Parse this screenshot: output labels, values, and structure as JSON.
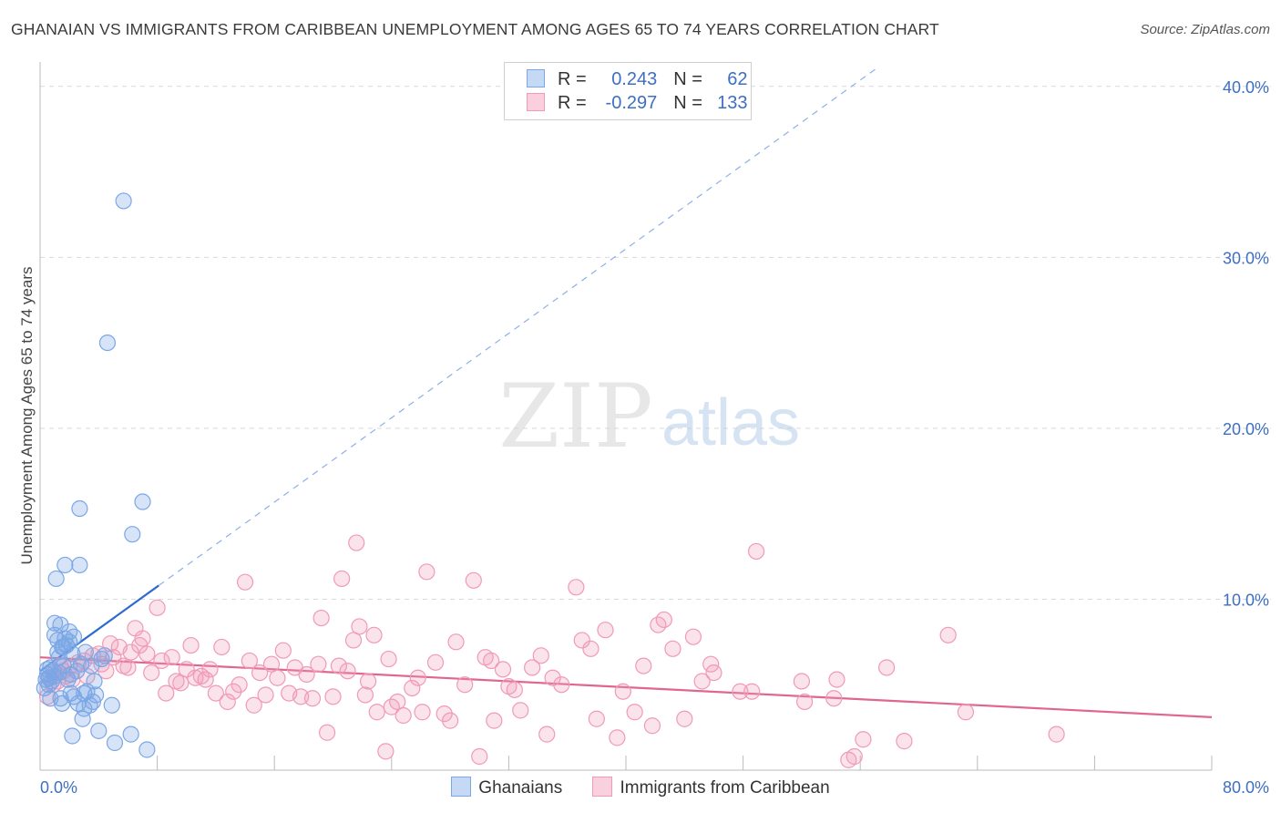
{
  "title": "GHANAIAN VS IMMIGRANTS FROM CARIBBEAN UNEMPLOYMENT AMONG AGES 65 TO 74 YEARS CORRELATION CHART",
  "source": "Source: ZipAtlas.com",
  "watermark": {
    "zip": "ZIP",
    "atlas": "atlas"
  },
  "legend": {
    "r_label": "R =",
    "n_label": "N =",
    "rows": [
      {
        "r": "0.243",
        "n": "62",
        "color": "#7aa7e6"
      },
      {
        "r": "-0.297",
        "n": "133",
        "color": "#f09ab6"
      }
    ]
  },
  "bottom_legend": [
    {
      "label": "Ghanaians",
      "color": "#7aa7e6"
    },
    {
      "label": "Immigrants from Caribbean",
      "color": "#f09ab6"
    }
  ],
  "chart_data": {
    "type": "scatter",
    "title": "GHANAIAN VS IMMIGRANTS FROM CARIBBEAN UNEMPLOYMENT AMONG AGES 65 TO 74 YEARS CORRELATION CHART",
    "xlabel": "",
    "ylabel": "Unemployment Among Ages 65 to 74 years",
    "xlim": [
      0,
      80
    ],
    "ylim": [
      0,
      41
    ],
    "x_tick_labels": [
      "0.0%",
      "80.0%"
    ],
    "y_ticks": [
      10,
      20,
      30,
      40
    ],
    "y_tick_labels": [
      "10.0%",
      "20.0%",
      "30.0%",
      "40.0%"
    ],
    "grid": true,
    "series": [
      {
        "name": "Ghanaians",
        "color": "#7aa7e6",
        "line_color": "#2c6bd1",
        "trend": {
          "x0": 0,
          "y0": 5.8,
          "x1": 8.1,
          "y1": 10.8,
          "dashed_to_x": 80
        },
        "points": [
          [
            0.3,
            4.8
          ],
          [
            0.4,
            5.3
          ],
          [
            0.5,
            5.6
          ],
          [
            0.5,
            5.9
          ],
          [
            0.6,
            5.4
          ],
          [
            0.7,
            4.2
          ],
          [
            0.7,
            6.0
          ],
          [
            0.8,
            5.2
          ],
          [
            0.9,
            5.8
          ],
          [
            1.0,
            7.9
          ],
          [
            1.0,
            8.6
          ],
          [
            1.1,
            11.2
          ],
          [
            1.2,
            7.6
          ],
          [
            1.2,
            6.9
          ],
          [
            1.3,
            5.7
          ],
          [
            1.4,
            8.5
          ],
          [
            1.4,
            4.2
          ],
          [
            1.5,
            3.9
          ],
          [
            1.6,
            7.2
          ],
          [
            1.6,
            6.1
          ],
          [
            1.7,
            12.0
          ],
          [
            1.7,
            7.7
          ],
          [
            1.8,
            7.3
          ],
          [
            1.9,
            5.3
          ],
          [
            2.0,
            7.5
          ],
          [
            2.0,
            8.1
          ],
          [
            2.1,
            5.6
          ],
          [
            2.1,
            4.5
          ],
          [
            2.2,
            6.8
          ],
          [
            2.2,
            2.0
          ],
          [
            2.3,
            7.8
          ],
          [
            2.3,
            4.3
          ],
          [
            2.5,
            5.8
          ],
          [
            2.6,
            3.9
          ],
          [
            2.7,
            12.0
          ],
          [
            2.7,
            15.3
          ],
          [
            2.8,
            6.2
          ],
          [
            2.9,
            3.0
          ],
          [
            3.0,
            4.5
          ],
          [
            3.0,
            3.6
          ],
          [
            3.1,
            6.9
          ],
          [
            3.2,
            4.6
          ],
          [
            3.4,
            3.8
          ],
          [
            3.5,
            6.1
          ],
          [
            3.6,
            4.0
          ],
          [
            3.7,
            5.2
          ],
          [
            3.8,
            4.4
          ],
          [
            4.0,
            2.3
          ],
          [
            4.2,
            6.5
          ],
          [
            4.4,
            6.7
          ],
          [
            4.6,
            25.0
          ],
          [
            4.9,
            3.8
          ],
          [
            5.1,
            1.6
          ],
          [
            5.7,
            33.3
          ],
          [
            6.2,
            2.1
          ],
          [
            6.3,
            13.8
          ],
          [
            7.0,
            15.7
          ],
          [
            7.3,
            1.2
          ],
          [
            0.6,
            5.0
          ],
          [
            1.0,
            5.5
          ],
          [
            1.3,
            6.6
          ],
          [
            1.5,
            7.2
          ]
        ]
      },
      {
        "name": "Immigrants from Caribbean",
        "color": "#f09ab6",
        "line_color": "#e06690",
        "trend": {
          "x0": 0,
          "y0": 6.6,
          "x1": 80,
          "y1": 3.1
        },
        "points": [
          [
            0.5,
            4.3
          ],
          [
            0.7,
            5.4
          ],
          [
            0.9,
            5.0
          ],
          [
            1.0,
            5.7
          ],
          [
            1.2,
            5.2
          ],
          [
            1.4,
            6.1
          ],
          [
            1.6,
            5.8
          ],
          [
            1.8,
            5.5
          ],
          [
            2.0,
            6.0
          ],
          [
            2.2,
            5.3
          ],
          [
            2.6,
            6.3
          ],
          [
            3.0,
            6.4
          ],
          [
            3.2,
            5.5
          ],
          [
            3.6,
            6.7
          ],
          [
            4.0,
            6.8
          ],
          [
            4.2,
            6.2
          ],
          [
            4.5,
            5.8
          ],
          [
            4.8,
            7.4
          ],
          [
            5.0,
            6.6
          ],
          [
            5.4,
            7.2
          ],
          [
            5.7,
            6.1
          ],
          [
            6.0,
            6.0
          ],
          [
            6.2,
            6.9
          ],
          [
            6.5,
            8.3
          ],
          [
            6.8,
            7.3
          ],
          [
            7.0,
            7.7
          ],
          [
            7.3,
            6.8
          ],
          [
            7.6,
            5.7
          ],
          [
            8.0,
            9.5
          ],
          [
            8.3,
            6.4
          ],
          [
            8.6,
            4.5
          ],
          [
            9.0,
            6.6
          ],
          [
            9.3,
            5.2
          ],
          [
            9.6,
            5.1
          ],
          [
            10.0,
            5.9
          ],
          [
            10.3,
            7.3
          ],
          [
            10.6,
            5.4
          ],
          [
            11.0,
            5.5
          ],
          [
            11.3,
            5.3
          ],
          [
            11.6,
            5.9
          ],
          [
            12.0,
            4.5
          ],
          [
            12.4,
            7.2
          ],
          [
            12.8,
            4.0
          ],
          [
            13.2,
            4.6
          ],
          [
            13.6,
            5.0
          ],
          [
            14.0,
            11.0
          ],
          [
            14.3,
            6.4
          ],
          [
            14.6,
            3.8
          ],
          [
            15.0,
            5.7
          ],
          [
            15.4,
            4.4
          ],
          [
            15.8,
            6.2
          ],
          [
            16.2,
            5.4
          ],
          [
            16.6,
            7.0
          ],
          [
            17.0,
            4.5
          ],
          [
            17.4,
            6.0
          ],
          [
            17.8,
            4.3
          ],
          [
            18.2,
            5.6
          ],
          [
            18.6,
            4.2
          ],
          [
            19.0,
            6.2
          ],
          [
            19.2,
            8.9
          ],
          [
            19.6,
            2.2
          ],
          [
            20.0,
            4.3
          ],
          [
            20.4,
            6.1
          ],
          [
            20.6,
            11.2
          ],
          [
            21.0,
            5.8
          ],
          [
            21.4,
            7.6
          ],
          [
            21.6,
            13.3
          ],
          [
            21.8,
            8.4
          ],
          [
            22.2,
            4.4
          ],
          [
            22.4,
            5.2
          ],
          [
            22.8,
            7.9
          ],
          [
            23.0,
            3.4
          ],
          [
            23.6,
            1.1
          ],
          [
            23.8,
            6.5
          ],
          [
            24.0,
            3.7
          ],
          [
            24.4,
            4.0
          ],
          [
            24.8,
            3.2
          ],
          [
            25.4,
            4.8
          ],
          [
            25.8,
            5.4
          ],
          [
            26.1,
            3.4
          ],
          [
            26.4,
            11.6
          ],
          [
            27.0,
            6.3
          ],
          [
            27.6,
            3.3
          ],
          [
            28.0,
            2.9
          ],
          [
            28.4,
            7.5
          ],
          [
            29.0,
            5.0
          ],
          [
            29.6,
            11.1
          ],
          [
            30.0,
            0.8
          ],
          [
            30.4,
            6.6
          ],
          [
            30.8,
            6.4
          ],
          [
            31.0,
            2.9
          ],
          [
            31.6,
            5.9
          ],
          [
            32.0,
            4.9
          ],
          [
            32.4,
            4.7
          ],
          [
            32.8,
            3.5
          ],
          [
            33.6,
            6.0
          ],
          [
            34.2,
            6.7
          ],
          [
            34.6,
            2.1
          ],
          [
            35.0,
            5.4
          ],
          [
            35.6,
            5.0
          ],
          [
            36.6,
            10.7
          ],
          [
            37.0,
            7.6
          ],
          [
            37.6,
            7.1
          ],
          [
            38.0,
            3.0
          ],
          [
            38.6,
            8.2
          ],
          [
            39.4,
            1.9
          ],
          [
            39.8,
            4.6
          ],
          [
            40.6,
            3.4
          ],
          [
            41.2,
            6.1
          ],
          [
            41.8,
            2.6
          ],
          [
            42.2,
            8.5
          ],
          [
            42.6,
            8.8
          ],
          [
            43.2,
            7.1
          ],
          [
            44.0,
            3.0
          ],
          [
            44.6,
            7.8
          ],
          [
            45.2,
            5.2
          ],
          [
            45.8,
            6.2
          ],
          [
            46.0,
            5.7
          ],
          [
            47.8,
            4.6
          ],
          [
            48.6,
            4.6
          ],
          [
            48.9,
            12.8
          ],
          [
            52.0,
            5.2
          ],
          [
            52.2,
            4.0
          ],
          [
            54.2,
            4.2
          ],
          [
            54.4,
            5.3
          ],
          [
            55.2,
            0.6
          ],
          [
            55.6,
            0.8
          ],
          [
            56.2,
            1.8
          ],
          [
            57.8,
            6.0
          ],
          [
            59.0,
            1.7
          ],
          [
            62.0,
            7.9
          ],
          [
            63.2,
            3.4
          ],
          [
            69.4,
            2.1
          ]
        ]
      }
    ]
  }
}
